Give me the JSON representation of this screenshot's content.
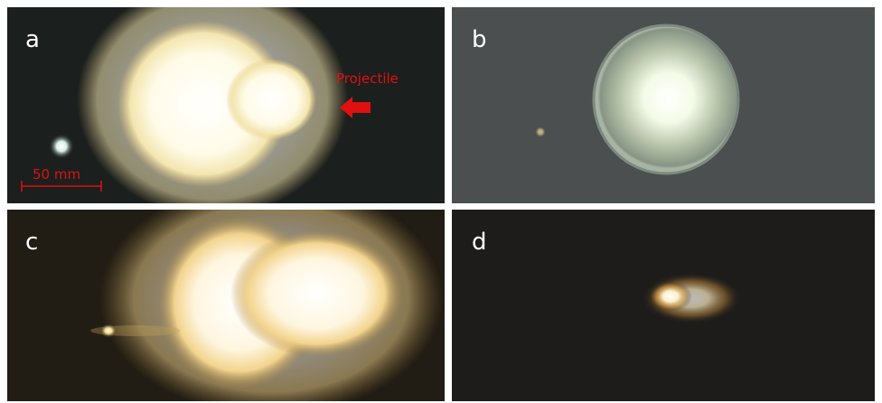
{
  "panels": [
    {
      "label": "a"
    },
    {
      "label": "b"
    },
    {
      "label": "c"
    },
    {
      "label": "d"
    }
  ],
  "annotations": {
    "projectile": "Projectile",
    "scale_bar": "50 mm"
  }
}
